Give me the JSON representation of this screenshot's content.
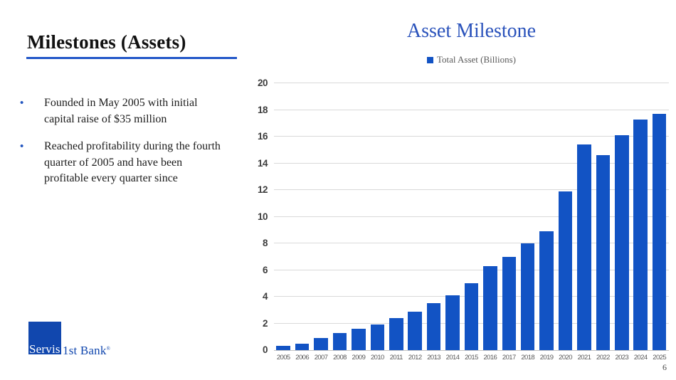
{
  "slide": {
    "title": "Milestones (Assets)",
    "bullet_glyph": "•",
    "bullets": [
      "Founded in May 2005 with initial capital raise of $35 million",
      "Reached profitability during the fourth quarter of 2005 and have been profitable every quarter since"
    ],
    "logo": {
      "servis": "Servis",
      "rest": "1st Bank",
      "reg": "®"
    },
    "page_number": "6",
    "colors": {
      "accent_blue": "#2156c8",
      "logo_blue": "#1147ae",
      "chart_title_blue": "#2a52bb"
    }
  },
  "chart_data": {
    "type": "bar",
    "title": "Asset Milestone",
    "legend_label": "Total Asset (Billions)",
    "legend_position": "top",
    "grid": true,
    "bar_color": "#1253c4",
    "gridline_color": "#d9d9d9",
    "ylim": [
      0,
      20
    ],
    "y_ticks": [
      0,
      2,
      4,
      6,
      8,
      10,
      12,
      14,
      16,
      18,
      20
    ],
    "categories": [
      "2005",
      "2006",
      "2007",
      "2008",
      "2009",
      "2010",
      "2011",
      "2012",
      "2013",
      "2014",
      "2015",
      "2016",
      "2017",
      "2018",
      "2019",
      "2020",
      "2021",
      "2022",
      "2023",
      "2024",
      "2025"
    ],
    "values": [
      0.3,
      0.5,
      0.9,
      1.3,
      1.6,
      1.9,
      2.4,
      2.9,
      3.5,
      4.1,
      5.0,
      6.3,
      7.0,
      8.0,
      8.9,
      11.9,
      15.4,
      14.6,
      16.1,
      17.3,
      17.7
    ]
  }
}
